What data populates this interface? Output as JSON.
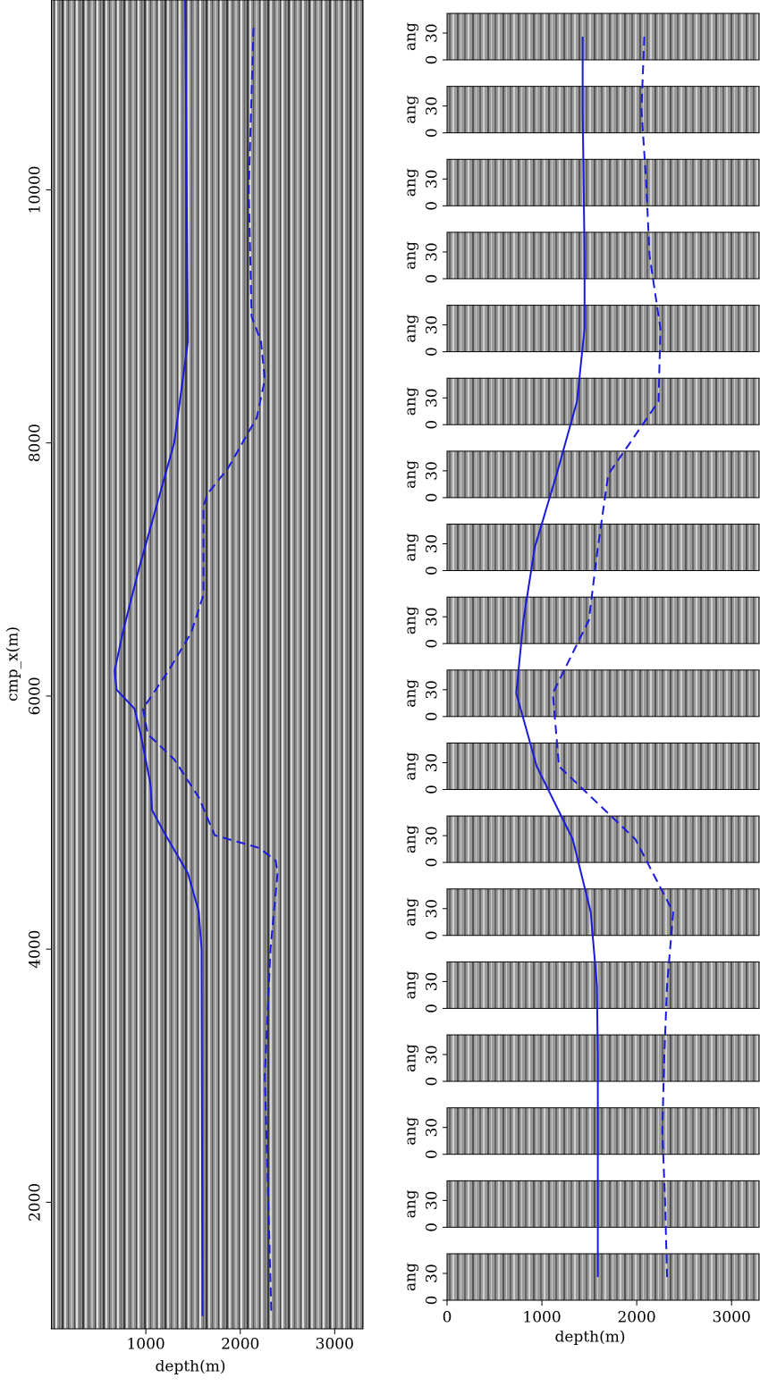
{
  "chart_data": [
    {
      "type": "line",
      "xlabel": "depth(m)",
      "ylabel": "cmp_x(m)",
      "xlim": [
        0,
        3300
      ],
      "ylim": [
        1000,
        11500
      ],
      "xticks": [
        1000,
        2000,
        3000
      ],
      "yticks": [
        2000,
        4000,
        6000,
        8000,
        10000
      ],
      "series": [
        {
          "color": "#1a1adc",
          "dashed": false,
          "x": [
            1417,
            1445,
            1300,
            925,
            755,
            670,
            690,
            880,
            945,
            1050,
            1065,
            1210,
            1445,
            1560,
            1590,
            1600
          ],
          "y": [
            11500,
            8800,
            8000,
            7000,
            6500,
            6200,
            6050,
            5900,
            5700,
            5300,
            5100,
            4900,
            4600,
            4300,
            4000,
            1100
          ]
        },
        {
          "color": "#1a1adc",
          "dashed": true,
          "x": [
            2140,
            2090,
            2120,
            2220,
            2260,
            2175,
            1870,
            1655,
            1610,
            1610,
            1480,
            1240,
            970,
            1020,
            1300,
            1560,
            1730,
            2200,
            2375,
            2395,
            2320,
            2260,
            2330
          ],
          "y": [
            11280,
            10000,
            9000,
            8800,
            8500,
            8200,
            7800,
            7600,
            7500,
            6800,
            6500,
            6200,
            5900,
            5700,
            5500,
            5200,
            4900,
            4800,
            4700,
            4600,
            4000,
            3000,
            1100
          ]
        }
      ]
    },
    {
      "type": "panels",
      "xlabel": "depth(m)",
      "ylabel": "ang",
      "xlim": [
        0,
        3300
      ],
      "ylim": [
        0,
        52
      ],
      "xticks": [
        0,
        1000,
        2000,
        3000
      ],
      "yticks": [
        0,
        30
      ],
      "series": [
        {
          "color": "#1a1adc",
          "dashed": false,
          "values": [
            1430,
            1430,
            1440,
            1450,
            1450,
            1370,
            1155,
            925,
            805,
            730,
            945,
            1325,
            1515,
            1580,
            1590,
            1590,
            1590,
            1590
          ]
        },
        {
          "color": "#1a1adc",
          "dashed": true,
          "values": [
            2080,
            2050,
            2100,
            2135,
            2250,
            2230,
            1700,
            1590,
            1495,
            1115,
            1180,
            1985,
            2385,
            2320,
            2290,
            2270,
            2300,
            2320
          ]
        }
      ]
    }
  ]
}
